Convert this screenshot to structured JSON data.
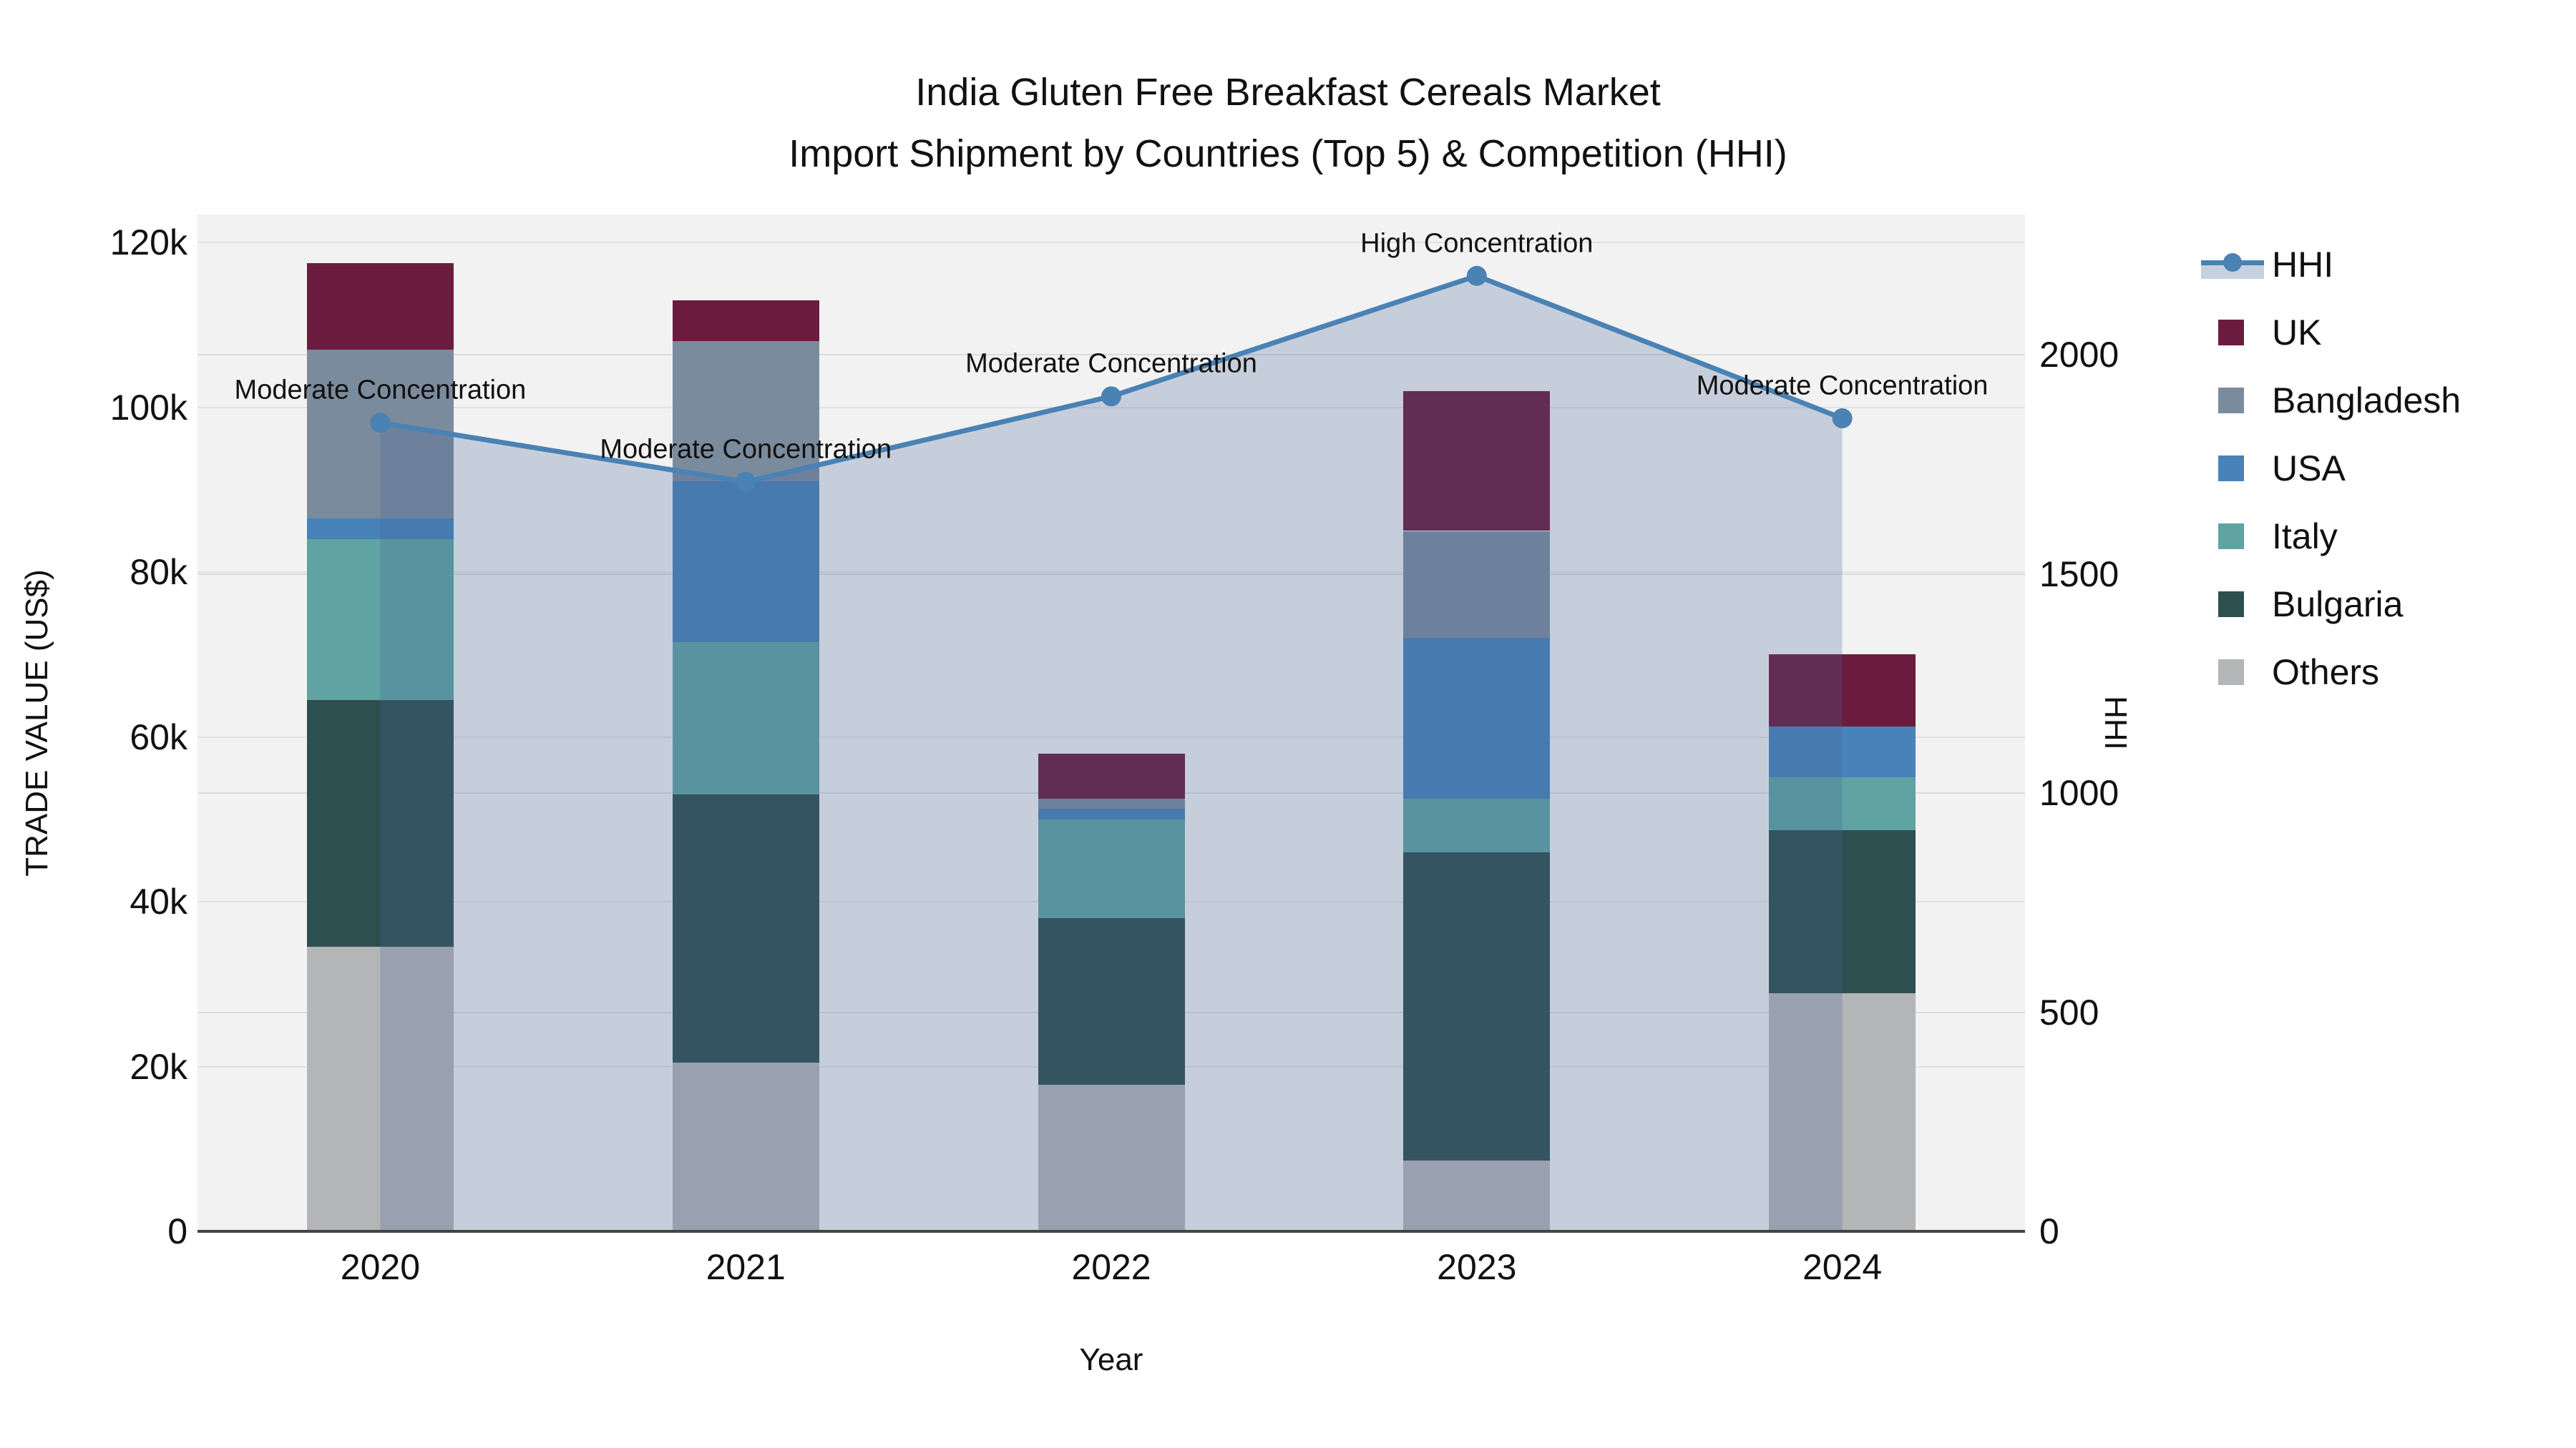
{
  "title": {
    "line1": "India Gluten Free Breakfast Cereals Market",
    "line2": "Import Shipment by Countries (Top 5) & Competition (HHI)"
  },
  "axes": {
    "x": {
      "title": "Year",
      "tick_labels": [
        "2020",
        "2021",
        "2022",
        "2023",
        "2024"
      ]
    },
    "left": {
      "title": "TRADE VALUE (US$)",
      "tick_labels": [
        "0",
        "20k",
        "40k",
        "60k",
        "80k",
        "100k",
        "120k"
      ],
      "tick_values": [
        0,
        20000,
        40000,
        60000,
        80000,
        100000,
        120000
      ],
      "range": [
        0,
        123400
      ],
      "grid": true
    },
    "right": {
      "title": "HHI",
      "tick_labels": [
        "0",
        "500",
        "1000",
        "1500",
        "2000"
      ],
      "tick_values": [
        0,
        500,
        1000,
        1500,
        2000
      ],
      "range": [
        0,
        2320
      ],
      "grid": true
    }
  },
  "legend": {
    "entries": [
      {
        "label": "HHI",
        "type": "line",
        "color": "#4A82B4"
      },
      {
        "label": "UK",
        "type": "swatch",
        "color": "#6B1B3E"
      },
      {
        "label": "Bangladesh",
        "type": "swatch",
        "color": "#7B8B9E"
      },
      {
        "label": "USA",
        "type": "swatch",
        "color": "#4783B8"
      },
      {
        "label": "Italy",
        "type": "swatch",
        "color": "#5FA3A2"
      },
      {
        "label": "Bulgaria",
        "type": "swatch",
        "color": "#2E4F50"
      },
      {
        "label": "Others",
        "type": "swatch",
        "color": "#B4B5B7"
      }
    ]
  },
  "chart_data": {
    "type": "combo-stacked-bar-line",
    "categories": [
      "2020",
      "2021",
      "2022",
      "2023",
      "2024"
    ],
    "bar_series": [
      {
        "name": "UK",
        "color": "#6B1B3E",
        "values": [
          10500,
          5000,
          5500,
          17000,
          8700
        ]
      },
      {
        "name": "Bangladesh",
        "color": "#7B8B9E",
        "values": [
          20500,
          17000,
          1200,
          13000,
          0
        ]
      },
      {
        "name": "USA",
        "color": "#4783B8",
        "values": [
          2500,
          19500,
          1300,
          19500,
          6200
        ]
      },
      {
        "name": "Italy",
        "color": "#5FA3A2",
        "values": [
          19500,
          18500,
          12000,
          6500,
          6400
        ]
      },
      {
        "name": "Bulgaria",
        "color": "#2E4F50",
        "values": [
          30000,
          32500,
          20200,
          37400,
          19800
        ]
      },
      {
        "name": "Others",
        "color": "#B4B5B7",
        "values": [
          34500,
          20500,
          17800,
          8600,
          28900
        ]
      }
    ],
    "stack_order_bottom_to_top": [
      "Others",
      "Bulgaria",
      "Italy",
      "USA",
      "Bangladesh",
      "UK"
    ],
    "bar_totals": [
      117500,
      113000,
      58000,
      102000,
      70000
    ],
    "line_series": {
      "name": "HHI",
      "color": "#4A82B4",
      "fill_color": "rgba(70,100,150,0.25)",
      "values": [
        1845,
        1710,
        1905,
        2180,
        1855
      ],
      "axis": "right",
      "fill": "tozeroy"
    },
    "annotations": [
      {
        "category": "2020",
        "text": "Moderate Concentration"
      },
      {
        "category": "2021",
        "text": "Moderate Concentration"
      },
      {
        "category": "2022",
        "text": "Moderate Concentration"
      },
      {
        "category": "2023",
        "text": "High Concentration"
      },
      {
        "category": "2024",
        "text": "Moderate Concentration"
      }
    ],
    "title": "India Gluten Free Breakfast Cereals Market — Import Shipment by Countries (Top 5) & Competition (HHI)",
    "xlabel": "Year",
    "ylabel_left": "TRADE VALUE (US$)",
    "ylabel_right": "HHI",
    "legend_position": "right",
    "plot_background": "#F2F2F2"
  },
  "colors": {
    "paper_background": "#FFFFFF",
    "plot_background": "#F2F2F2",
    "gridline": "#E2E2E2",
    "axis_line": "#444444",
    "text": "#111111",
    "hhi_line": "#4A82B4",
    "hhi_fill": "rgba(70,100,150,0.25)"
  }
}
